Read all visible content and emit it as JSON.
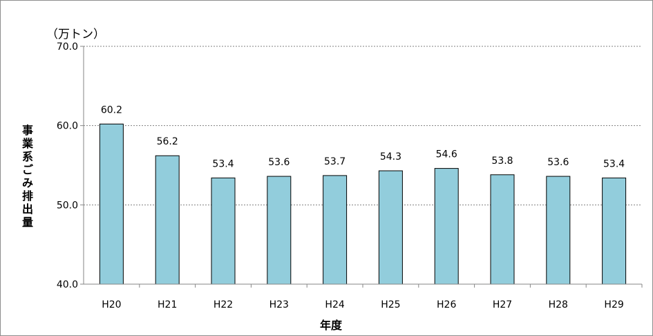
{
  "chart_data": {
    "type": "bar",
    "unit_label": "（万トン）",
    "ylabel": "事業系ごみ排出量",
    "xlabel": "年度",
    "categories": [
      "H20",
      "H21",
      "H22",
      "H23",
      "H24",
      "H25",
      "H26",
      "H27",
      "H28",
      "H29"
    ],
    "values": [
      60.2,
      56.2,
      53.4,
      53.6,
      53.7,
      54.3,
      54.6,
      53.8,
      53.6,
      53.4
    ],
    "value_labels": [
      "60.2",
      "56.2",
      "53.4",
      "53.6",
      "53.7",
      "54.3",
      "54.6",
      "53.8",
      "53.6",
      "53.4"
    ],
    "ylim": [
      40,
      70
    ],
    "yticks": [
      40,
      50,
      60,
      70
    ],
    "ytick_labels": [
      "40.0",
      "50.0",
      "60.0",
      "70.0"
    ],
    "grid": true,
    "legend": "none",
    "bar_color": "#92cddc",
    "bar_edge_color": "#000000",
    "grid_color": "#7f7f7f"
  }
}
